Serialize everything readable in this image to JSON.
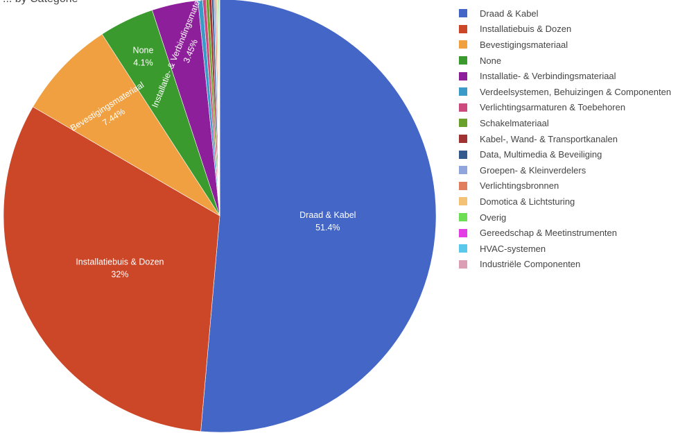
{
  "title": "... by Categorie",
  "chart_data": {
    "type": "pie",
    "title": "... by Categorie",
    "legend_position": "right",
    "start": "12 o'clock, clockwise",
    "slices": [
      {
        "label": "Draad & Kabel",
        "value": 51.4,
        "display": "51.4%",
        "color": "#4466c6"
      },
      {
        "label": "Installatiebuis & Dozen",
        "value": 32.0,
        "display": "32%",
        "color": "#cc4628"
      },
      {
        "label": "Bevestigingsmateriaal",
        "value": 7.44,
        "display": "7.44%",
        "color": "#f0a040"
      },
      {
        "label": "None",
        "value": 4.1,
        "display": "4.1%",
        "color": "#3b9a2e"
      },
      {
        "label": "Installatie- & Verbindingsmateriaal",
        "value": 3.45,
        "display": "3.45%",
        "color": "#8e1f9a"
      },
      {
        "label": "Verdeelsystemen, Behuizingen & Componenten",
        "value": 0.35,
        "display": "",
        "color": "#3a9bc8"
      },
      {
        "label": "Verlichtingsarmaturen & Toebehoren",
        "value": 0.25,
        "display": "",
        "color": "#cc4a7e"
      },
      {
        "label": "Schakelmateriaal",
        "value": 0.22,
        "display": "",
        "color": "#6aa02c"
      },
      {
        "label": "Kabel-, Wand- & Transportkanalen",
        "value": 0.2,
        "display": "",
        "color": "#a03232"
      },
      {
        "label": "Data, Multimedia & Beveiliging",
        "value": 0.15,
        "display": "",
        "color": "#355a8e"
      },
      {
        "label": "Groepen- & Kleinverdelers",
        "value": 0.1,
        "display": "",
        "color": "#8fa5dc"
      },
      {
        "label": "Verlichtingsbronnen",
        "value": 0.09,
        "display": "",
        "color": "#e07e5e"
      },
      {
        "label": "Domotica & Lichtsturing",
        "value": 0.08,
        "display": "",
        "color": "#f3c276"
      },
      {
        "label": "Overig",
        "value": 0.06,
        "display": "",
        "color": "#6cde56"
      },
      {
        "label": "Gereedschap & Meetinstrumenten",
        "value": 0.05,
        "display": "",
        "color": "#e33ee6"
      },
      {
        "label": "HVAC-systemen",
        "value": 0.04,
        "display": "",
        "color": "#5ac8ea"
      },
      {
        "label": "Industriële Componenten",
        "value": 0.02,
        "display": "",
        "color": "#dc9eb4"
      }
    ]
  }
}
